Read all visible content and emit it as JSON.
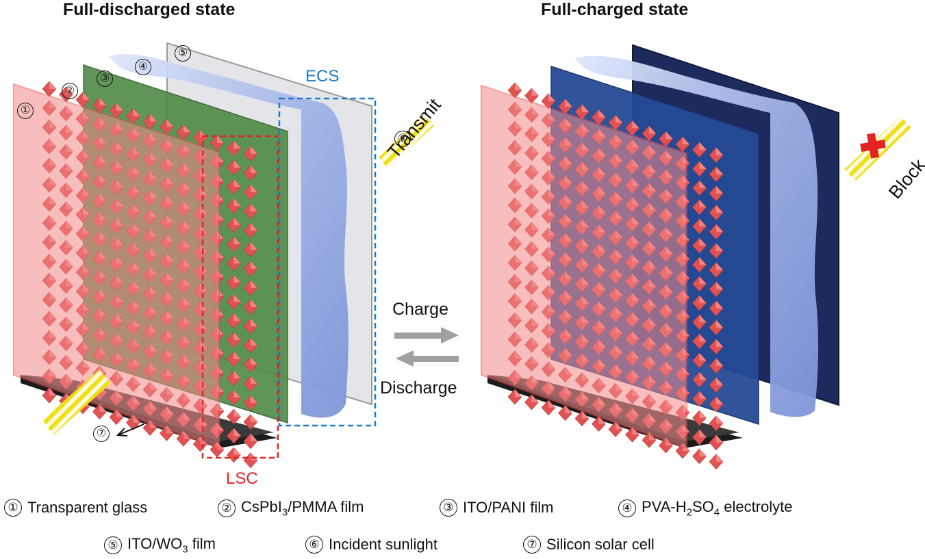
{
  "titles": {
    "left": "Full-discharged state",
    "right": "Full-charged state"
  },
  "labels": {
    "ecs": "ECS",
    "lsc": "LSC",
    "transmit": "Transmit",
    "block": "Block",
    "charge": "Charge",
    "discharge": "Discharge"
  },
  "markers": [
    "①",
    "②",
    "③",
    "④",
    "⑤",
    "⑥",
    "⑦"
  ],
  "legend": [
    {
      "num": "①",
      "text": "Transparent glass"
    },
    {
      "num": "②",
      "text": "CsPbI3/PMMA film",
      "base": "CsPbI",
      "sub": "3",
      "tail": "/PMMA film"
    },
    {
      "num": "③",
      "text": "ITO/PANI film"
    },
    {
      "num": "④",
      "text": "PVA-H2SO4 electrolyte",
      "base": "PVA-H",
      "sub": "2",
      "mid": "SO",
      "sub2": "4",
      "tail": " electrolyte"
    },
    {
      "num": "⑤",
      "text": "ITO/WO3 film",
      "base": "ITO/WO",
      "sub": "3",
      "tail": " film"
    },
    {
      "num": "⑥",
      "text": "Incident sunlight"
    },
    {
      "num": "⑦",
      "text": "Silicon solar cell"
    }
  ],
  "colors": {
    "glass": "#f48a8a",
    "crystal": "#e35a5a",
    "green_film": "#3f7a3a",
    "gel": "#a8b8e6",
    "wo3_clear": "#dcdde0",
    "wo3_dark": "#1d2a5c",
    "pani_dark": "#1f3f80",
    "ecs_box": "#1a7bc8",
    "lsc_box": "#e3251f",
    "sun": "#f2e21c",
    "block": "#e3251f"
  }
}
